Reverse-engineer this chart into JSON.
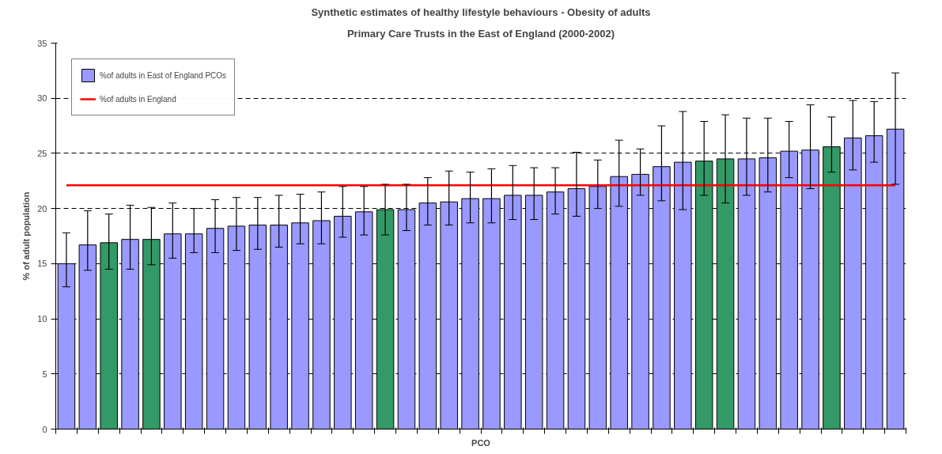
{
  "chart_data": {
    "type": "bar",
    "title": "Synthetic estimates of healthy lifestyle behaviours - Obesity of adults",
    "subtitle": "Primary Care Trusts in the East of England (2000-2002)",
    "xlabel": "PCO",
    "ylabel": "% of adult population",
    "categories": [
      null,
      null,
      null,
      null,
      null,
      null,
      null,
      null,
      null,
      null,
      null,
      null,
      null,
      null,
      null,
      null,
      null,
      null,
      null,
      null,
      null,
      null,
      null,
      null,
      null,
      null,
      null,
      null,
      null,
      null,
      null,
      null,
      null,
      null,
      null,
      null,
      null,
      null,
      null,
      null
    ],
    "series": [
      {
        "name": "%of adults in East of England PCOs",
        "colors": [
          "#9999ff",
          "#9999ff",
          "#339966",
          "#9999ff",
          "#339966",
          "#9999ff",
          "#9999ff",
          "#9999ff",
          "#9999ff",
          "#9999ff",
          "#9999ff",
          "#9999ff",
          "#9999ff",
          "#9999ff",
          "#9999ff",
          "#339966",
          "#9999ff",
          "#9999ff",
          "#9999ff",
          "#9999ff",
          "#9999ff",
          "#9999ff",
          "#9999ff",
          "#9999ff",
          "#9999ff",
          "#9999ff",
          "#9999ff",
          "#9999ff",
          "#9999ff",
          "#9999ff",
          "#339966",
          "#339966",
          "#9999ff",
          "#9999ff",
          "#9999ff",
          "#9999ff",
          "#339966",
          "#9999ff",
          "#9999ff",
          "#9999ff"
        ],
        "values": [
          15.0,
          16.7,
          16.9,
          17.2,
          17.2,
          17.7,
          17.7,
          18.2,
          18.4,
          18.5,
          18.5,
          18.7,
          18.9,
          19.3,
          19.7,
          19.9,
          19.9,
          20.5,
          20.6,
          20.9,
          20.9,
          21.2,
          21.2,
          21.5,
          21.8,
          22.0,
          22.9,
          23.1,
          23.8,
          24.2,
          24.3,
          24.5,
          24.5,
          24.6,
          25.2,
          25.3,
          25.6,
          26.4,
          26.6,
          27.2
        ],
        "errors": [
          [
            12.9,
            17.8
          ],
          [
            14.4,
            19.8
          ],
          [
            14.5,
            19.5
          ],
          [
            14.5,
            20.3
          ],
          [
            14.9,
            20.1
          ],
          [
            15.5,
            20.5
          ],
          [
            16.0,
            20.0
          ],
          [
            16.0,
            20.8
          ],
          [
            16.2,
            21.0
          ],
          [
            16.3,
            21.0
          ],
          [
            16.5,
            21.2
          ],
          [
            16.8,
            21.3
          ],
          [
            16.8,
            21.5
          ],
          [
            17.4,
            22.0
          ],
          [
            17.6,
            22.0
          ],
          [
            17.6,
            22.2
          ],
          [
            18.0,
            22.2
          ],
          [
            18.5,
            22.8
          ],
          [
            18.5,
            23.4
          ],
          [
            18.7,
            23.3
          ],
          [
            18.7,
            23.6
          ],
          [
            19.0,
            23.9
          ],
          [
            19.0,
            23.7
          ],
          [
            19.5,
            23.7
          ],
          [
            19.3,
            25.1
          ],
          [
            20.0,
            24.4
          ],
          [
            20.2,
            26.2
          ],
          [
            21.2,
            25.4
          ],
          [
            20.7,
            27.5
          ],
          [
            19.9,
            28.8
          ],
          [
            21.2,
            27.9
          ],
          [
            20.5,
            28.5
          ],
          [
            21.2,
            28.2
          ],
          [
            21.5,
            28.2
          ],
          [
            22.8,
            27.9
          ],
          [
            21.8,
            29.4
          ],
          [
            23.3,
            28.3
          ],
          [
            23.5,
            29.8
          ],
          [
            24.2,
            29.7
          ],
          [
            22.2,
            32.3
          ]
        ]
      },
      {
        "name": "%of adults in England",
        "type": "line",
        "color": "#ff0000",
        "values": [
          22.1,
          22.1,
          22.1,
          22.1,
          22.1,
          22.1,
          22.1,
          22.1,
          22.1,
          22.1,
          22.1,
          22.1,
          22.1,
          22.1,
          22.1,
          22.1,
          22.1,
          22.1,
          22.1,
          22.1,
          22.1,
          22.1,
          22.1,
          22.1,
          22.1,
          22.1,
          22.1,
          22.1,
          22.1,
          22.1,
          22.1,
          22.1,
          22.1,
          22.1,
          22.1,
          22.1,
          22.1,
          22.1,
          22.1,
          22.1
        ]
      }
    ],
    "ylim": [
      0,
      35
    ],
    "yticks": [
      0,
      5,
      10,
      15,
      20,
      25,
      30,
      35
    ],
    "grid": "y",
    "legend": "top left",
    "tick_labels": "y"
  }
}
